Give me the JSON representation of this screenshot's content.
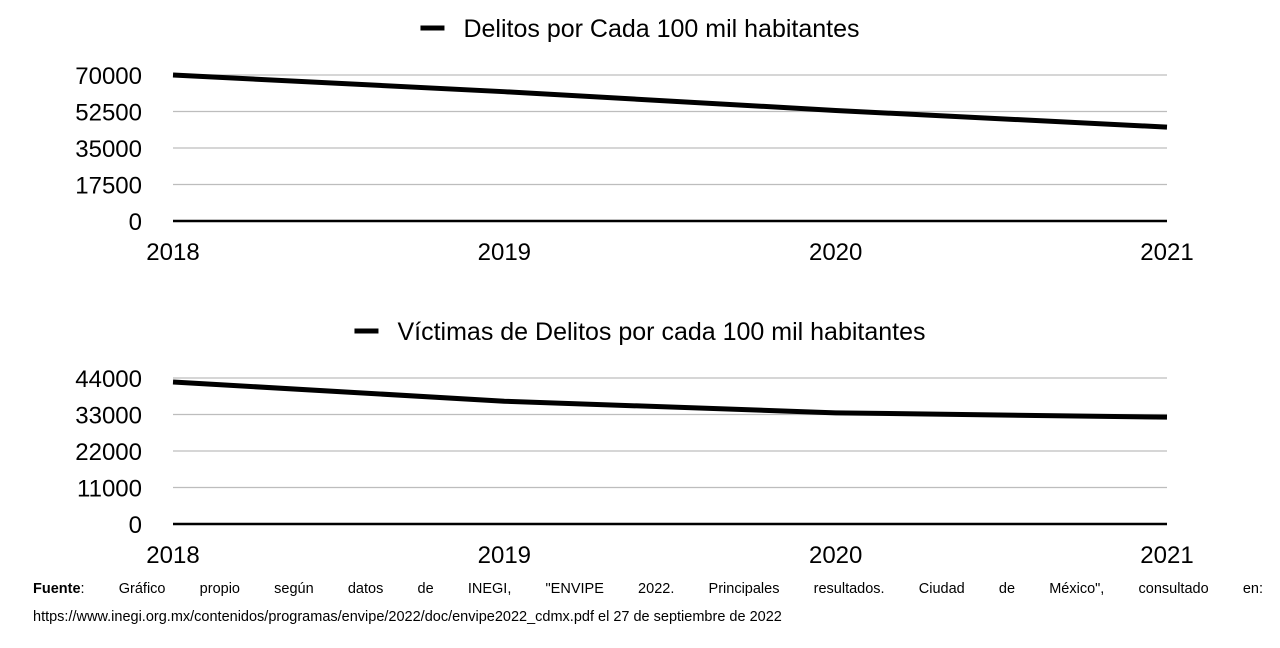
{
  "chart_data": [
    {
      "type": "line",
      "categories": [
        "2018",
        "2019",
        "2020",
        "2021"
      ],
      "series": [
        {
          "name": "Delitos por Cada 100 mil habitantes",
          "values": [
            70000,
            62000,
            53000,
            45000
          ]
        }
      ],
      "yticks": [
        "70000",
        "52500",
        "35000",
        "17500",
        "0"
      ],
      "ylim": [
        0,
        70000
      ],
      "grid": true,
      "legend": "top-center",
      "color": "#000000"
    },
    {
      "type": "line",
      "categories": [
        "2018",
        "2019",
        "2020",
        "2021"
      ],
      "series": [
        {
          "name": "Víctimas de Delitos por cada 100 mil habitantes",
          "values": [
            42800,
            37000,
            33500,
            32200
          ]
        }
      ],
      "yticks": [
        "44000",
        "33000",
        "22000",
        "11000",
        "0"
      ],
      "ylim": [
        0,
        44000
      ],
      "grid": true,
      "legend": "top-center",
      "color": "#000000"
    }
  ],
  "source": {
    "label": "Fuente",
    "text": ": Gráfico propio según datos de INEGI, \"ENVIPE 2022. Principales resultados. Ciudad de México\", consultado en: https://www.inegi.org.mx/contenidos/programas/envipe/2022/doc/envipe2022_cdmx.pdf el 27 de septiembre de 2022"
  }
}
